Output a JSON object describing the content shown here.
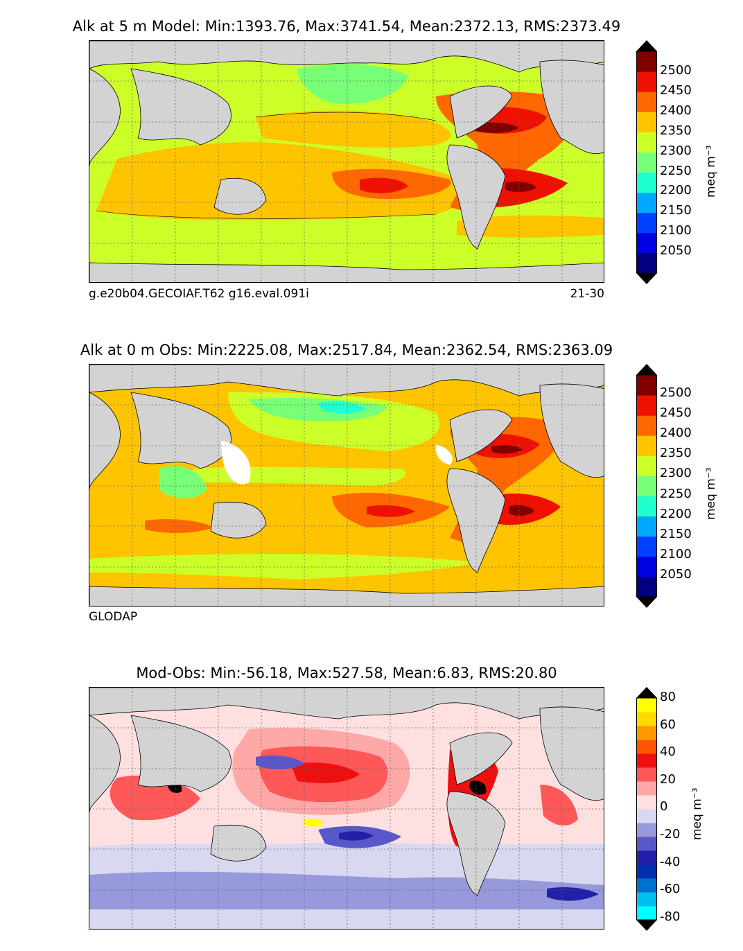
{
  "panels": [
    {
      "title": "Alk at 5 m Model: Min:1393.76, Max:3741.54, Mean:2372.13, RMS:2373.49",
      "caption_left": "g.e20b04.GECOIAF.T62 g16.eval.091i",
      "caption_right": "21-30",
      "colorbar": {
        "unit_label": "meq m⁻³",
        "ticks": [
          "2500",
          "2450",
          "2400",
          "2350",
          "2300",
          "2250",
          "2200",
          "2150",
          "2100",
          "2050"
        ],
        "colors": [
          "#000080",
          "#0000e0",
          "#0040ff",
          "#00a8ff",
          "#20ffd0",
          "#78ff78",
          "#ccff28",
          "#ffc400",
          "#ff6800",
          "#ee1000",
          "#800000"
        ]
      }
    },
    {
      "title": "Alk at 0 m Obs: Min:2225.08, Max:2517.84, Mean:2362.54, RMS:2363.09",
      "caption_left": "GLODAP",
      "caption_right": "",
      "colorbar": {
        "unit_label": "meq m⁻³",
        "ticks": [
          "2500",
          "2450",
          "2400",
          "2350",
          "2300",
          "2250",
          "2200",
          "2150",
          "2100",
          "2050"
        ],
        "colors": [
          "#000080",
          "#0000e0",
          "#0040ff",
          "#00a8ff",
          "#20ffd0",
          "#78ff78",
          "#ccff28",
          "#ffc400",
          "#ff6800",
          "#ee1000",
          "#800000"
        ]
      }
    },
    {
      "title": "Mod-Obs: Min:-56.18, Max:527.58, Mean:6.83, RMS:20.80",
      "caption_left": "",
      "caption_right": "",
      "colorbar": {
        "unit_label": "meq m⁻³",
        "ticks": [
          "80",
          "60",
          "40",
          "20",
          "0",
          "-20",
          "-40",
          "-60",
          "-80"
        ],
        "colors": [
          "#00ffff",
          "#00bfef",
          "#0070d0",
          "#0030b0",
          "#2020a8",
          "#5858c8",
          "#9898dc",
          "#d8d8f0",
          "#ffe0e0",
          "#ffa8a8",
          "#ff5858",
          "#ee1010",
          "#ff5500",
          "#ff9900",
          "#ffd800",
          "#ffff00"
        ]
      }
    }
  ],
  "chart_data": [
    {
      "type": "heatmap",
      "title": "Alk at 5 m Model: Min:1393.76, Max:3741.54, Mean:2372.13, RMS:2373.49",
      "variable": "Alkalinity",
      "depth": "5 m",
      "source": "Model",
      "stats": {
        "min": 1393.76,
        "max": 3741.54,
        "mean": 2372.13,
        "rms": 2373.49
      },
      "colorbar_range": [
        2000,
        2550
      ],
      "colorbar_step": 50,
      "units": "meq m^-3"
    },
    {
      "type": "heatmap",
      "title": "Alk at 0 m Obs: Min:2225.08, Max:2517.84, Mean:2362.54, RMS:2363.09",
      "variable": "Alkalinity",
      "depth": "0 m",
      "source": "GLODAP",
      "stats": {
        "min": 2225.08,
        "max": 2517.84,
        "mean": 2362.54,
        "rms": 2363.09
      },
      "colorbar_range": [
        2000,
        2550
      ],
      "colorbar_step": 50,
      "units": "meq m^-3"
    },
    {
      "type": "heatmap",
      "title": "Mod-Obs: Min:-56.18, Max:527.58, Mean:6.83, RMS:20.80",
      "variable": "Alkalinity difference",
      "stats": {
        "min": -56.18,
        "max": 527.58,
        "mean": 6.83,
        "rms": 20.8
      },
      "colorbar_range": [
        -80,
        80
      ],
      "colorbar_step": 10,
      "units": "meq m^-3"
    }
  ]
}
